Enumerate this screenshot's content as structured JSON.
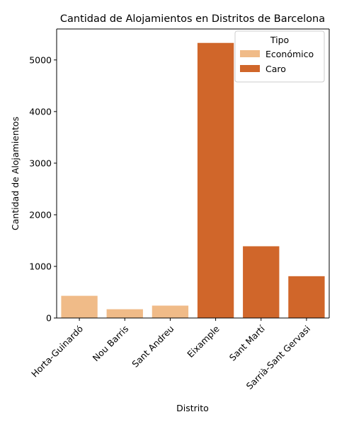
{
  "chart_data": {
    "type": "bar",
    "title": "Cantidad de Alojamientos en Distritos de Barcelona",
    "xlabel": "Distrito",
    "ylabel": "Cantidad de Alojamientos",
    "categories": [
      "Horta-Guinardó",
      "Nou Barris",
      "Sant Andreu",
      "Eixample",
      "Sant Martí",
      "Sarrià-Sant Gervasi"
    ],
    "values": [
      430,
      170,
      240,
      5330,
      1390,
      810
    ],
    "bar_type": [
      "Económico",
      "Económico",
      "Económico",
      "Caro",
      "Caro",
      "Caro"
    ],
    "y_ticks": [
      0,
      1000,
      2000,
      3000,
      4000,
      5000
    ],
    "ylim": [
      0,
      5600
    ],
    "grid": false,
    "legend": {
      "title": "Tipo",
      "placement": "top-right",
      "entries": [
        {
          "label": "Económico",
          "color": "#f0bb88"
        },
        {
          "label": "Caro",
          "color": "#d0662a"
        }
      ]
    }
  }
}
